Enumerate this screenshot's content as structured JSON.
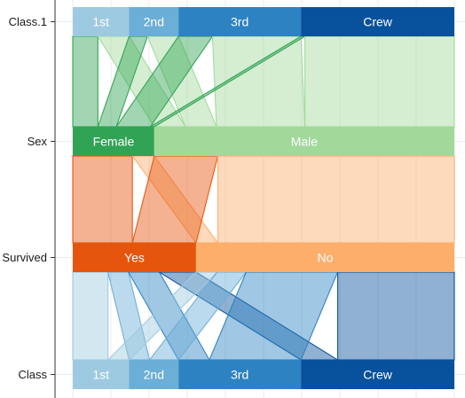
{
  "chart_data": {
    "type": "parallel-sets",
    "title": "",
    "axes": [
      {
        "name": "Class.1",
        "categories": [
          "1st",
          "2nd",
          "3rd",
          "Crew"
        ],
        "colors": [
          "#9ecae1",
          "#6baed6",
          "#2d82c2",
          "#08519c"
        ]
      },
      {
        "name": "Sex",
        "categories": [
          "Female",
          "Male"
        ],
        "colors": [
          "#31a354",
          "#a1d99b"
        ]
      },
      {
        "name": "Survived",
        "categories": [
          "Yes",
          "No"
        ],
        "colors": [
          "#e6550d",
          "#fdae6b"
        ]
      },
      {
        "name": "Class",
        "categories": [
          "1st",
          "2nd",
          "3rd",
          "Crew"
        ],
        "colors": [
          "#9ecae1",
          "#6baed6",
          "#2d82c2",
          "#08519c"
        ]
      }
    ],
    "counts": {
      "Class.1": {
        "1st": 325,
        "2nd": 285,
        "3rd": 706,
        "Crew": 885
      },
      "Sex": {
        "Female": 470,
        "Male": 1731
      },
      "Survived": {
        "Yes": 711,
        "No": 1490
      },
      "Class": {
        "1st": 325,
        "2nd": 285,
        "3rd": 706,
        "Crew": 885
      }
    },
    "flows": {
      "Class.1-Sex": [
        {
          "from": "1st",
          "to": "Female",
          "value": 145
        },
        {
          "from": "1st",
          "to": "Male",
          "value": 180
        },
        {
          "from": "2nd",
          "to": "Female",
          "value": 106
        },
        {
          "from": "2nd",
          "to": "Male",
          "value": 179
        },
        {
          "from": "3rd",
          "to": "Female",
          "value": 196
        },
        {
          "from": "3rd",
          "to": "Male",
          "value": 510
        },
        {
          "from": "Crew",
          "to": "Female",
          "value": 23
        },
        {
          "from": "Crew",
          "to": "Male",
          "value": 862
        }
      ],
      "Sex-Survived": [
        {
          "from": "Female",
          "to": "Yes",
          "value": 344
        },
        {
          "from": "Female",
          "to": "No",
          "value": 126
        },
        {
          "from": "Male",
          "to": "Yes",
          "value": 367
        },
        {
          "from": "Male",
          "to": "No",
          "value": 1364
        }
      ],
      "Survived-Class": [
        {
          "from": "Yes",
          "to": "1st",
          "value": 203
        },
        {
          "from": "Yes",
          "to": "2nd",
          "value": 118
        },
        {
          "from": "Yes",
          "to": "3rd",
          "value": 178
        },
        {
          "from": "Yes",
          "to": "Crew",
          "value": 212
        },
        {
          "from": "No",
          "to": "1st",
          "value": 122
        },
        {
          "from": "No",
          "to": "2nd",
          "value": 167
        },
        {
          "from": "No",
          "to": "3rd",
          "value": 528
        },
        {
          "from": "No",
          "to": "Crew",
          "value": 673
        }
      ]
    }
  }
}
